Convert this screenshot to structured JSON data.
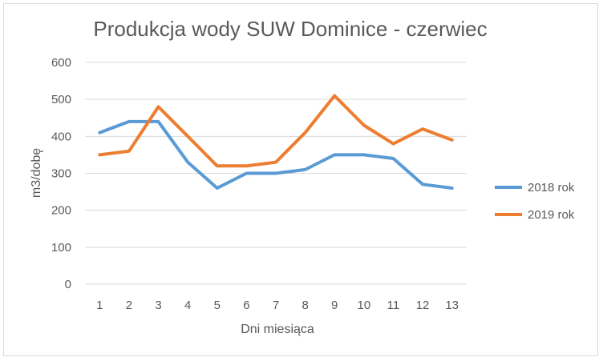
{
  "chart_data": {
    "type": "line",
    "title": "Produkcja wody SUW Dominice - czerwiec",
    "xlabel": "Dni miesiąca",
    "ylabel": "m3/dobę",
    "ylim": [
      0,
      600
    ],
    "yticks": [
      0,
      100,
      200,
      300,
      400,
      500,
      600
    ],
    "categories": [
      "1",
      "2",
      "3",
      "4",
      "5",
      "6",
      "7",
      "8",
      "9",
      "10",
      "11",
      "12",
      "13"
    ],
    "grid": true,
    "legend_position": "right",
    "series": [
      {
        "name": "2018 rok",
        "color": "#5b9bd5",
        "values": [
          410,
          440,
          440,
          330,
          260,
          300,
          300,
          310,
          350,
          350,
          340,
          270,
          260
        ]
      },
      {
        "name": "2019 rok",
        "color": "#ed7d31",
        "values": [
          350,
          360,
          480,
          400,
          320,
          320,
          330,
          410,
          510,
          430,
          380,
          420,
          390
        ]
      }
    ]
  }
}
